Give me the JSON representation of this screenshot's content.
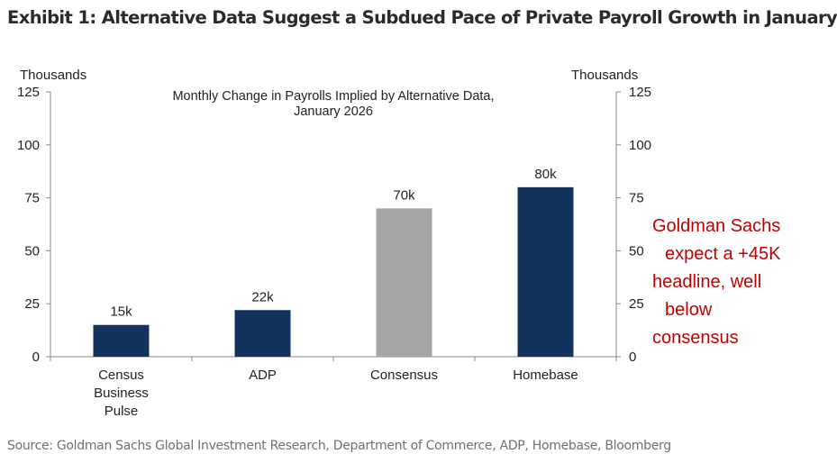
{
  "title": "Exhibit 1: Alternative Data Suggest a Subdued Pace of Private Payroll Growth in January",
  "source": "Source: Goldman Sachs Global Investment Research, Department of Commerce, ADP, Homebase, Bloomberg",
  "annotation": [
    "Goldman Sachs",
    "  expect a +45K",
    "headline, well",
    "  below",
    "consensus"
  ],
  "chart_data": {
    "type": "bar",
    "title": [
      "Monthly Change  in Payrolls Implied  by Alternative  Data,",
      "January  2026"
    ],
    "ylabel_left": "Thousands",
    "ylabel_right": "Thousands",
    "ylim": [
      0,
      125
    ],
    "yticks": [
      0,
      25,
      50,
      75,
      100,
      125
    ],
    "grid": false,
    "categories": [
      [
        "Census",
        "Business",
        "Pulse"
      ],
      [
        "ADP"
      ],
      [
        "Consensus"
      ],
      [
        "Homebase"
      ]
    ],
    "values": [
      15,
      22,
      70,
      80
    ],
    "data_labels": [
      "15k",
      "22k",
      "70k",
      "80k"
    ],
    "bar_colors": [
      "#12335e",
      "#12335e",
      "#a6a6a6",
      "#12335e"
    ]
  }
}
